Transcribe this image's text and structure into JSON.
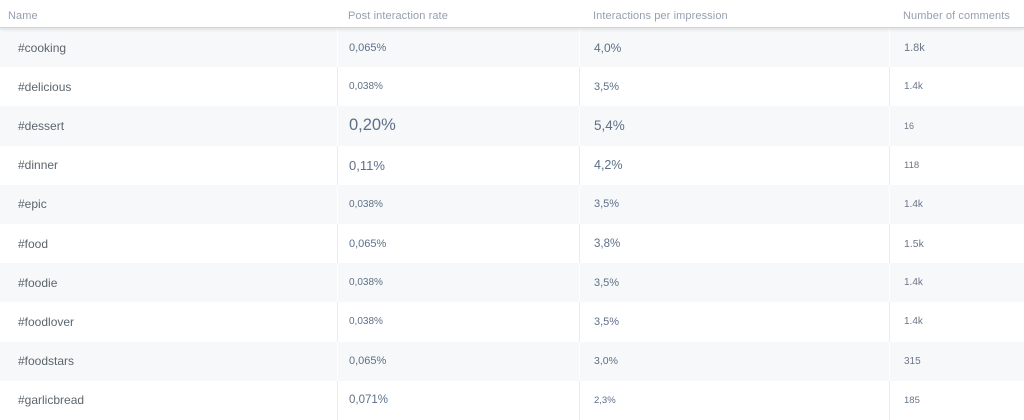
{
  "colors": {
    "row_stripe": "#f7f8f9",
    "header_text": "#95a0b0",
    "name_text": "#5c656d",
    "value_text": "#5d7088",
    "header_border": "#d0d3d7",
    "column_separator": "#e9ebee"
  },
  "table": {
    "columns": [
      "Name",
      "Post interaction rate",
      "Interactions per impression",
      "Number of comments"
    ],
    "rows": [
      {
        "name": "#cooking",
        "rate": "0,065%",
        "ipi": "4,0%",
        "comments": "1.8k",
        "sizes": {
          "rate": 11,
          "ipi": 12,
          "comments": 11
        }
      },
      {
        "name": "#delicious",
        "rate": "0,038%",
        "ipi": "3,5%",
        "comments": "1.4k",
        "sizes": {
          "rate": 10,
          "ipi": 11,
          "comments": 10
        }
      },
      {
        "name": "#dessert",
        "rate": "0,20%",
        "ipi": "5,4%",
        "comments": "16",
        "sizes": {
          "rate": 16.5,
          "ipi": 13.5,
          "comments": 9
        }
      },
      {
        "name": "#dinner",
        "rate": "0,11%",
        "ipi": "4,2%",
        "comments": "118",
        "sizes": {
          "rate": 13,
          "ipi": 12.5,
          "comments": 9.5
        }
      },
      {
        "name": "#epic",
        "rate": "0,038%",
        "ipi": "3,5%",
        "comments": "1.4k",
        "sizes": {
          "rate": 10,
          "ipi": 11,
          "comments": 10
        }
      },
      {
        "name": "#food",
        "rate": "0,065%",
        "ipi": "3,8%",
        "comments": "1.5k",
        "sizes": {
          "rate": 11,
          "ipi": 11.5,
          "comments": 10.5
        }
      },
      {
        "name": "#foodie",
        "rate": "0,038%",
        "ipi": "3,5%",
        "comments": "1.4k",
        "sizes": {
          "rate": 10,
          "ipi": 11,
          "comments": 10
        }
      },
      {
        "name": "#foodlover",
        "rate": "0,038%",
        "ipi": "3,5%",
        "comments": "1.4k",
        "sizes": {
          "rate": 10,
          "ipi": 11,
          "comments": 10
        }
      },
      {
        "name": "#foodstars",
        "rate": "0,065%",
        "ipi": "3,0%",
        "comments": "315",
        "sizes": {
          "rate": 11,
          "ipi": 10.5,
          "comments": 10
        }
      },
      {
        "name": "#garlicbread",
        "rate": "0,071%",
        "ipi": "2,3%",
        "comments": "185",
        "sizes": {
          "rate": 11.5,
          "ipi": 9.5,
          "comments": 9.5
        }
      }
    ]
  }
}
